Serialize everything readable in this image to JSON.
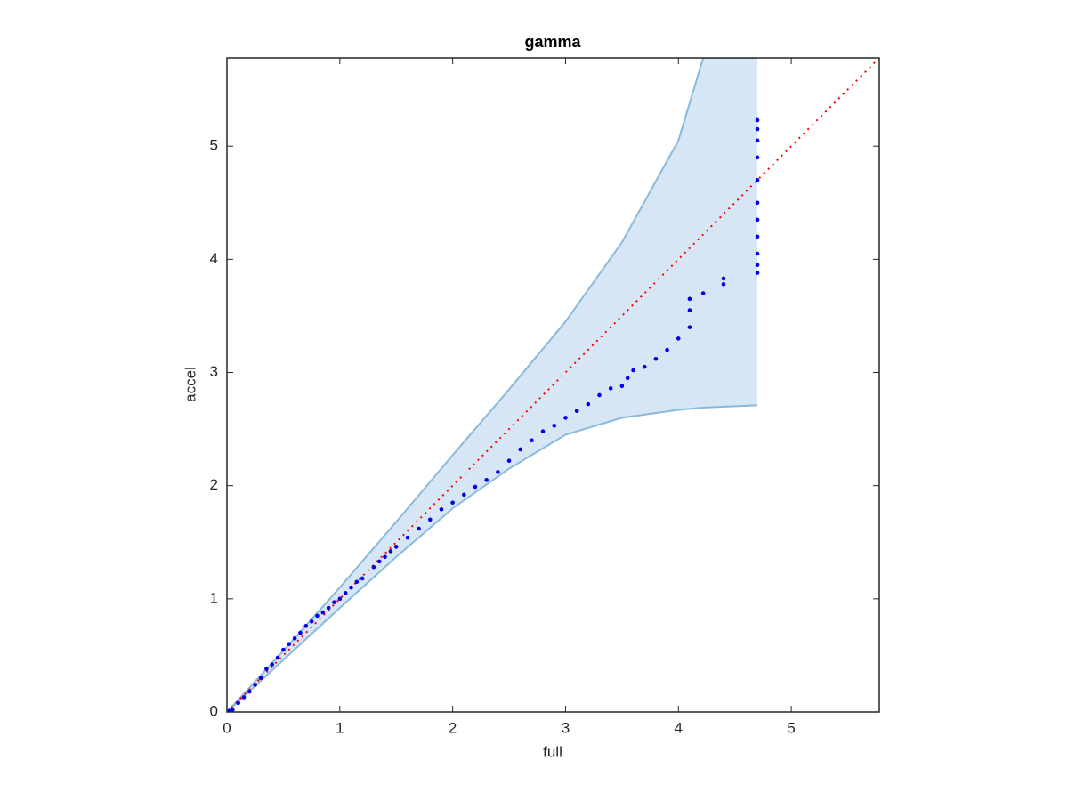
{
  "chart_data": {
    "type": "scatter",
    "title": "gamma",
    "x_label": "full",
    "y_label": "accel",
    "xlim": [
      0,
      5.78
    ],
    "ylim": [
      0,
      5.78
    ],
    "xticks": [
      0,
      1,
      2,
      3,
      4,
      5
    ],
    "yticks": [
      0,
      1,
      2,
      3,
      4,
      5
    ],
    "color": "#0000ee",
    "x": [
      0,
      0.02,
      0.05,
      0.1,
      0.15,
      0.2,
      0.25,
      0.3,
      0.35,
      0.4,
      0.45,
      0.5,
      0.55,
      0.6,
      0.65,
      0.7,
      0.75,
      0.8,
      0.85,
      0.9,
      0.95,
      1.0,
      1.05,
      1.1,
      1.15,
      1.2,
      1.3,
      1.35,
      1.4,
      1.45,
      1.5,
      1.6,
      1.7,
      1.8,
      1.9,
      2.0,
      2.1,
      2.2,
      2.3,
      2.4,
      2.5,
      2.6,
      2.7,
      2.8,
      2.9,
      3.0,
      3.1,
      3.2,
      3.3,
      3.4,
      3.5,
      3.55,
      3.6,
      3.7,
      3.8,
      3.9,
      4.0,
      4.1,
      4.1,
      4.1,
      4.22,
      4.4,
      4.4,
      4.7,
      4.7,
      4.7,
      4.7,
      4.7,
      4.7,
      4.7,
      4.7,
      4.7,
      4.7,
      4.7
    ],
    "y": [
      0,
      0.01,
      0.02,
      0.08,
      0.13,
      0.18,
      0.24,
      0.3,
      0.38,
      0.42,
      0.48,
      0.55,
      0.6,
      0.65,
      0.7,
      0.76,
      0.8,
      0.85,
      0.88,
      0.92,
      0.97,
      1.0,
      1.05,
      1.1,
      1.15,
      1.18,
      1.28,
      1.33,
      1.37,
      1.42,
      1.46,
      1.54,
      1.62,
      1.7,
      1.79,
      1.85,
      1.92,
      1.99,
      2.05,
      2.12,
      2.22,
      2.32,
      2.4,
      2.48,
      2.53,
      2.6,
      2.66,
      2.72,
      2.8,
      2.86,
      2.88,
      2.95,
      3.02,
      3.05,
      3.12,
      3.2,
      3.3,
      3.4,
      3.55,
      3.65,
      3.7,
      3.78,
      3.83,
      3.88,
      3.95,
      4.05,
      4.2,
      4.35,
      4.5,
      4.7,
      4.9,
      5.05,
      5.15,
      5.23
    ],
    "band": {
      "x": [
        0,
        0.5,
        1,
        1.5,
        2,
        2.5,
        3,
        3.5,
        4,
        4.22,
        4.7
      ],
      "lower": [
        0,
        0.46,
        0.92,
        1.37,
        1.8,
        2.15,
        2.45,
        2.6,
        2.67,
        2.69,
        2.71
      ],
      "upper": [
        0,
        0.54,
        1.1,
        1.68,
        2.27,
        2.85,
        3.45,
        4.15,
        5.05,
        5.78,
        5.78
      ],
      "color": "#89b9dd",
      "fill": "#d6e6f4"
    },
    "reference": {
      "x": [
        0,
        5.78
      ],
      "y": [
        0,
        5.78
      ],
      "color": "#ff0000"
    }
  }
}
